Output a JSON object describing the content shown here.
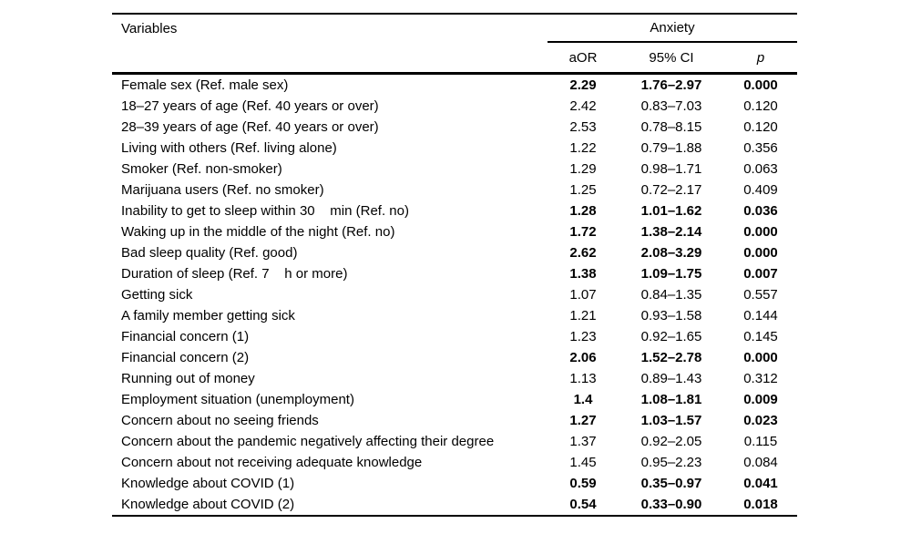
{
  "table": {
    "header": {
      "variables_label": "Variables",
      "group_label": "Anxiety",
      "col_aor": "aOR",
      "col_ci": "95% CI",
      "col_p": "p"
    },
    "rows": [
      {
        "variable": "Female sex (Ref. male sex)",
        "aor": "2.29",
        "ci": "1.76–2.97",
        "p": "0.000",
        "bold": true
      },
      {
        "variable": "18–27 years of age (Ref. 40 years or over)",
        "aor": "2.42",
        "ci": "0.83–7.03",
        "p": "0.120",
        "bold": false
      },
      {
        "variable": "28–39 years of age (Ref. 40 years or over)",
        "aor": "2.53",
        "ci": "0.78–8.15",
        "p": "0.120",
        "bold": false
      },
      {
        "variable": "Living with others (Ref. living alone)",
        "aor": "1.22",
        "ci": "0.79–1.88",
        "p": "0.356",
        "bold": false
      },
      {
        "variable": "Smoker (Ref. non-smoker)",
        "aor": "1.29",
        "ci": "0.98–1.71",
        "p": "0.063",
        "bold": false
      },
      {
        "variable": "Marijuana users (Ref. no smoker)",
        "aor": "1.25",
        "ci": "0.72–2.17",
        "p": "0.409",
        "bold": false
      },
      {
        "variable": "Inability to get to sleep within 30    min (Ref. no)",
        "aor": "1.28",
        "ci": "1.01–1.62",
        "p": "0.036",
        "bold": true
      },
      {
        "variable": "Waking up in the middle of the night (Ref. no)",
        "aor": "1.72",
        "ci": "1.38–2.14",
        "p": "0.000",
        "bold": true
      },
      {
        "variable": "Bad sleep quality (Ref. good)",
        "aor": "2.62",
        "ci": "2.08–3.29",
        "p": "0.000",
        "bold": true
      },
      {
        "variable": "Duration of sleep (Ref. 7    h or more)",
        "aor": "1.38",
        "ci": "1.09–1.75",
        "p": "0.007",
        "bold": true
      },
      {
        "variable": "Getting sick",
        "aor": "1.07",
        "ci": "0.84–1.35",
        "p": "0.557",
        "bold": false
      },
      {
        "variable": "A family member getting sick",
        "aor": "1.21",
        "ci": "0.93–1.58",
        "p": "0.144",
        "bold": false
      },
      {
        "variable": "Financial concern (1)",
        "aor": "1.23",
        "ci": "0.92–1.65",
        "p": "0.145",
        "bold": false
      },
      {
        "variable": "Financial concern (2)",
        "aor": "2.06",
        "ci": "1.52–2.78",
        "p": "0.000",
        "bold": true
      },
      {
        "variable": "Running out of money",
        "aor": "1.13",
        "ci": "0.89–1.43",
        "p": "0.312",
        "bold": false
      },
      {
        "variable": "Employment situation (unemployment)",
        "aor": "1.4",
        "ci": "1.08–1.81",
        "p": "0.009",
        "bold": true
      },
      {
        "variable": "Concern about no seeing friends",
        "aor": "1.27",
        "ci": "1.03–1.57",
        "p": "0.023",
        "bold": true
      },
      {
        "variable": "Concern about the pandemic negatively affecting their degree",
        "aor": "1.37",
        "ci": "0.92–2.05",
        "p": "0.115",
        "bold": false
      },
      {
        "variable": "Concern about not receiving adequate knowledge",
        "aor": "1.45",
        "ci": "0.95–2.23",
        "p": "0.084",
        "bold": false
      },
      {
        "variable": "Knowledge about COVID (1)",
        "aor": "0.59",
        "ci": "0.35–0.97",
        "p": "0.041",
        "bold": true
      },
      {
        "variable": "Knowledge about COVID (2)",
        "aor": "0.54",
        "ci": "0.33–0.90",
        "p": "0.018",
        "bold": true
      }
    ]
  }
}
